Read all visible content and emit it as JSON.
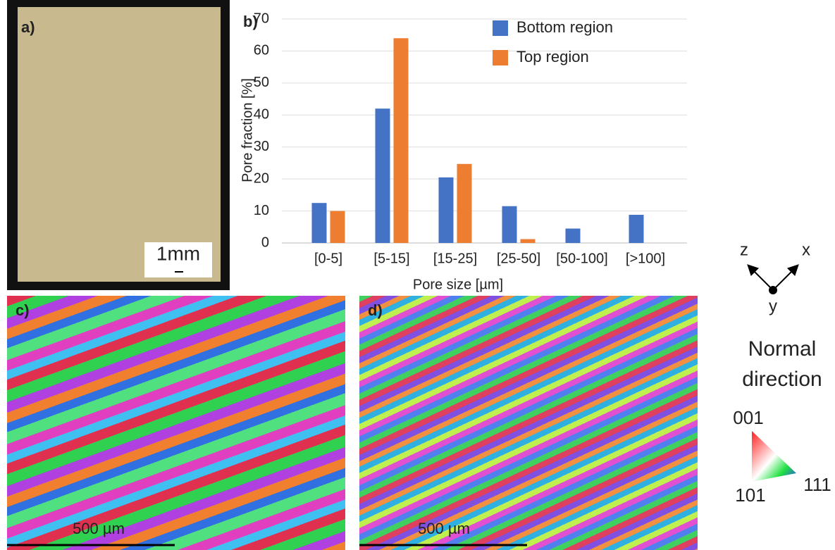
{
  "panels": {
    "a": {
      "label": "a)",
      "scale_bar": "1mm"
    },
    "c": {
      "label": "c)",
      "scale_bar": "500 µm"
    },
    "d": {
      "label": "d)",
      "scale_bar": "500 µm"
    }
  },
  "legend_key": {
    "axes": [
      "z",
      "x",
      "y"
    ],
    "title": [
      "Normal",
      "direction"
    ],
    "corners": [
      "001",
      "101",
      "111"
    ]
  },
  "chart_data": {
    "type": "bar",
    "title": "b)",
    "y_label": "Pore fraction [%]",
    "x_label": "Pore size [µm]",
    "categories": [
      "[0-5]",
      "[5-15]",
      "[15-25]",
      "[25-50]",
      "[50-100]",
      "[>100]"
    ],
    "series": [
      {
        "name": "Bottom region",
        "color": "#4472c4",
        "values": [
          12.5,
          42,
          20.5,
          11.5,
          4.5,
          8.8
        ]
      },
      {
        "name": "Top region",
        "color": "#ed7d31",
        "values": [
          10,
          64,
          24.7,
          1.2,
          0,
          0
        ]
      }
    ],
    "ylim": [
      0,
      70
    ],
    "yticks": [
      0,
      10,
      20,
      30,
      40,
      50,
      60,
      70
    ],
    "grid": true
  }
}
